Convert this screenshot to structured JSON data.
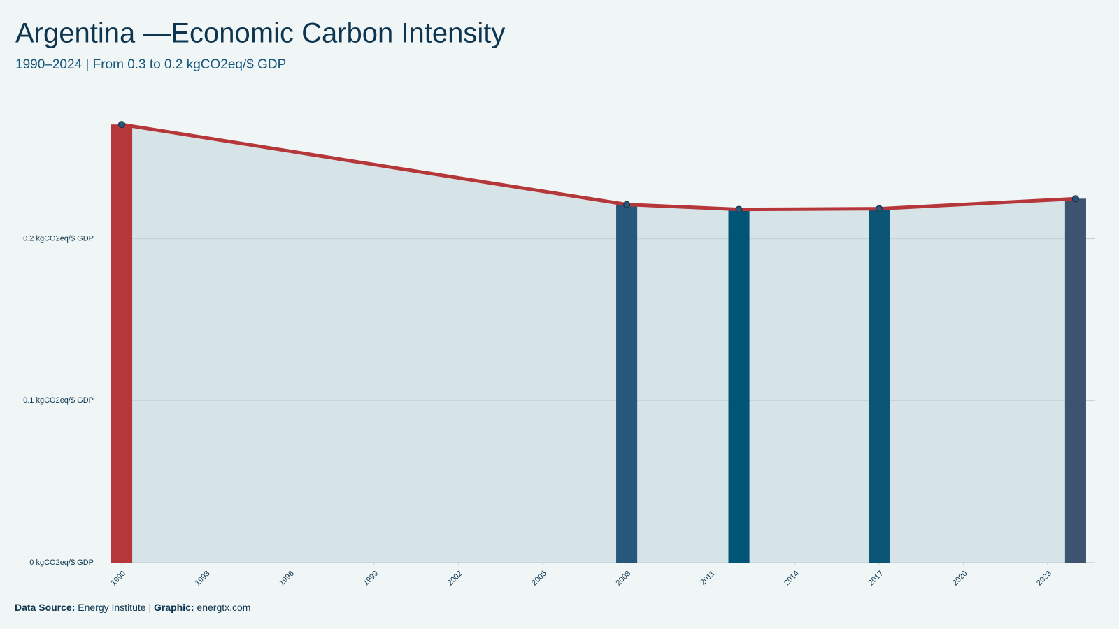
{
  "chart_data": {
    "type": "bar_line",
    "title": "Argentina —Economic Carbon Intensity",
    "subtitle": "1990–2024 | From 0.3 to 0.2 kgCO2eq/$ GDP",
    "x": [
      1990,
      2008,
      2012,
      2017,
      2024
    ],
    "values": [
      0.2705,
      0.2211,
      0.2181,
      0.2185,
      0.2247
    ],
    "bar_colors": [
      "#b5373a",
      "#27577a",
      "#005577",
      "#0b5577",
      "#3d5370"
    ],
    "line_color": "#b5373a",
    "area_color": "#d6e4e8",
    "point_color": "#27577a",
    "xlim": [
      1989.6,
      2024.7
    ],
    "xticks": [
      1990,
      1993,
      1996,
      1999,
      2002,
      2005,
      2008,
      2011,
      2014,
      2017,
      2020,
      2023
    ],
    "ylim": [
      0,
      0.29
    ],
    "yticks": [
      {
        "value": 0,
        "label": "0 kgCO2eq/$ GDP"
      },
      {
        "value": 0.1,
        "label": "0.1 kgCO2eq/$ GDP"
      },
      {
        "value": 0.2,
        "label": "0.2 kgCO2eq/$ GDP"
      }
    ],
    "grid": true,
    "footer": {
      "source_label": "Data Source:",
      "source": "Energy Institute",
      "separator": "|",
      "graphic_label": "Graphic:",
      "graphic": "energtx.com"
    }
  }
}
